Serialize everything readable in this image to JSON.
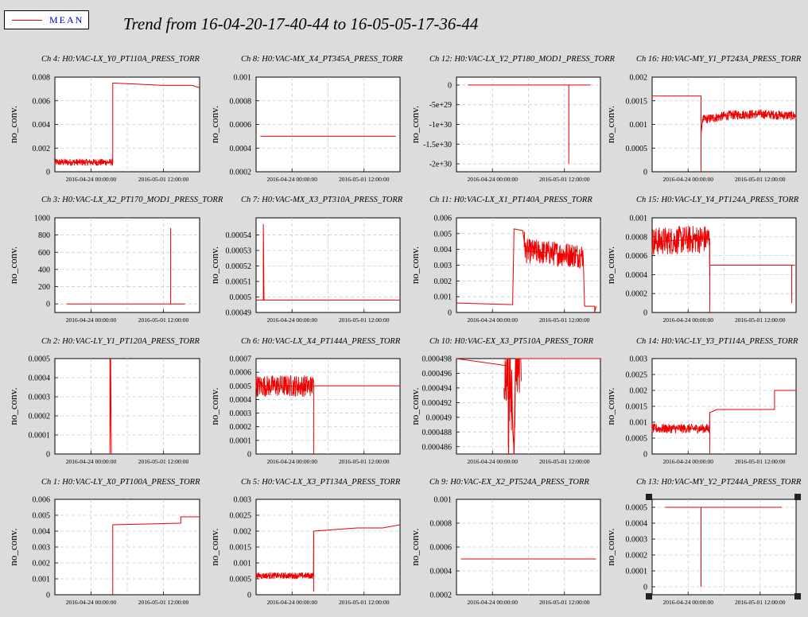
{
  "legend": {
    "label": "MEAN",
    "color": "#ee0000"
  },
  "title": "Trend from 16-04-20-17-40-44 to 16-05-05-17-36-44",
  "ylabel": "no_conv.",
  "xticks": [
    "2016-04-24 00:00:00",
    "2016-05-01 12:00:00"
  ],
  "colors": {
    "background": "#dcdcdc",
    "plot_bg": "#ffffff",
    "trace": "#ee0000",
    "grid": "#cccccc"
  },
  "chart_data": [
    {
      "type": "line",
      "title": "Ch 4: H0:VAC-LX_Y0_PT110A_PRESS_TORR",
      "ylim": [
        0,
        0.008
      ],
      "yticks": [
        "0",
        "0.002",
        "0.004",
        "0.006",
        "0.008"
      ],
      "series": [
        {
          "values": [
            [
              0,
              0.0008
            ],
            [
              0.4,
              0.0008
            ],
            [
              0.4,
              0.0075
            ],
            [
              0.75,
              0.0073
            ],
            [
              0.95,
              0.0073
            ],
            [
              1.0,
              0.0071
            ]
          ],
          "noise": [
            [
              0,
              0.4,
              0.0003
            ]
          ]
        }
      ]
    },
    {
      "type": "line",
      "title": "Ch 8: H0:VAC-MX_X4_PT345A_PRESS_TORR",
      "ylim": [
        0.0002,
        0.001
      ],
      "yticks": [
        "0.0002",
        "0.0004",
        "0.0006",
        "0.0008",
        "0.001"
      ],
      "series": [
        {
          "values": [
            [
              0.03,
              0.0005
            ],
            [
              0.97,
              0.0005
            ]
          ]
        }
      ]
    },
    {
      "type": "line",
      "title": "Ch 12: H0:VAC-LX_Y2_PT180_MOD1_PRESS_TORR",
      "ylim": [
        -2.2e+30,
        2e+29
      ],
      "yticks": [
        "0",
        "-5e+29",
        "-1e+30",
        "-1.5e+30",
        "-2e+30"
      ],
      "series": [
        {
          "values": [
            [
              0.08,
              0
            ],
            [
              0.78,
              0
            ],
            [
              0.78,
              -2e+30
            ],
            [
              0.78,
              0
            ],
            [
              0.93,
              0
            ]
          ]
        }
      ]
    },
    {
      "type": "line",
      "title": "Ch 16: H0:VAC-MY_Y1_PT243A_PRESS_TORR",
      "ylim": [
        0,
        0.002
      ],
      "yticks": [
        "0",
        "0.0005",
        "0.001",
        "0.0015",
        "0.002"
      ],
      "series": [
        {
          "values": [
            [
              0,
              0.0016
            ],
            [
              0.34,
              0.0016
            ],
            [
              0.34,
              0
            ],
            [
              0.34,
              0.0008
            ],
            [
              0.35,
              0.0011
            ],
            [
              0.55,
              0.0012
            ],
            [
              0.75,
              0.00122
            ],
            [
              1.0,
              0.00118
            ]
          ],
          "noise": [
            [
              0.35,
              1.0,
              0.0001
            ]
          ]
        }
      ]
    },
    {
      "type": "line",
      "title": "Ch 3: H0:VAC-LX_X2_PT170_MOD1_PRESS_TORR",
      "ylim": [
        -100,
        1000
      ],
      "yticks": [
        "0",
        "200",
        "400",
        "600",
        "800",
        "1000"
      ],
      "series": [
        {
          "values": [
            [
              0.08,
              0
            ],
            [
              0.8,
              0
            ],
            [
              0.8,
              880
            ],
            [
              0.8,
              0
            ],
            [
              0.9,
              0
            ]
          ]
        }
      ]
    },
    {
      "type": "line",
      "title": "Ch 7: H0:VAC-MX_X3_PT310A_PRESS_TORR",
      "ylim": [
        0.00049,
        0.000551
      ],
      "yticks": [
        "0.00049",
        "0.0005",
        "0.00051",
        "0.00052",
        "0.00053",
        "0.00054"
      ],
      "series": [
        {
          "values": [
            [
              0,
              0.000498
            ],
            [
              0.05,
              0.000498
            ],
            [
              0.05,
              0.000547
            ],
            [
              0.055,
              0.000498
            ],
            [
              1.0,
              0.000498
            ]
          ]
        }
      ]
    },
    {
      "type": "line",
      "title": "Ch 11: H0:VAC-LX_X1_PT140A_PRESS_TORR",
      "ylim": [
        0,
        0.006
      ],
      "yticks": [
        "0",
        "0.001",
        "0.002",
        "0.003",
        "0.004",
        "0.005",
        "0.006"
      ],
      "series": [
        {
          "values": [
            [
              0,
              0.0006
            ],
            [
              0.39,
              0.0005
            ],
            [
              0.4,
              0.0053
            ],
            [
              0.46,
              0.0052
            ],
            [
              0.48,
              0.0039
            ],
            [
              0.88,
              0.0036
            ],
            [
              0.89,
              0.0004
            ],
            [
              0.96,
              0.0004
            ],
            [
              0.96,
              0
            ],
            [
              0.97,
              0.0004
            ]
          ],
          "noise": [
            [
              0.47,
              0.88,
              0.0008
            ]
          ]
        }
      ]
    },
    {
      "type": "line",
      "title": "Ch 15: H0:VAC-LY_Y4_PT124A_PRESS_TORR",
      "ylim": [
        0,
        0.001
      ],
      "yticks": [
        "0",
        "0.0002",
        "0.0004",
        "0.0006",
        "0.0008",
        "0.001"
      ],
      "series": [
        {
          "values": [
            [
              0,
              0.00075
            ],
            [
              0.4,
              0.00078
            ],
            [
              0.4,
              0
            ],
            [
              0.4,
              0.0005
            ],
            [
              0.97,
              0.0005
            ],
            [
              0.97,
              0.0001
            ],
            [
              0.97,
              0.0005
            ],
            [
              0.99,
              0.0005
            ]
          ],
          "noise": [
            [
              0,
              0.4,
              0.00015
            ]
          ]
        }
      ]
    },
    {
      "type": "line",
      "title": "Ch 2: H0:VAC-LY_Y1_PT120A_PRESS_TORR",
      "ylim": [
        0,
        0.0005
      ],
      "yticks": [
        "0",
        "0.0001",
        "0.0002",
        "0.0003",
        "0.0004",
        "0.0005"
      ],
      "series": [
        {
          "values": [
            [
              0.38,
              0.0005
            ],
            [
              0.38,
              0
            ],
            [
              0.385,
              0.0005
            ],
            [
              0.39,
              0
            ]
          ]
        }
      ]
    },
    {
      "type": "line",
      "title": "Ch 6: H0:VAC-LX_X4_PT144A_PRESS_TORR",
      "ylim": [
        0,
        0.0007
      ],
      "yticks": [
        "0",
        "0.0001",
        "0.0002",
        "0.0003",
        "0.0004",
        "0.0005",
        "0.0006",
        "0.0007"
      ],
      "series": [
        {
          "values": [
            [
              0,
              0.0005
            ],
            [
              0.4,
              0.0005
            ],
            [
              0.4,
              0
            ],
            [
              0.4,
              0.0005
            ],
            [
              1.0,
              0.0005
            ]
          ],
          "noise": [
            [
              0,
              0.4,
              8e-05
            ]
          ]
        }
      ]
    },
    {
      "type": "line",
      "title": "Ch 10: H0:VAC-EX_X3_PT510A_PRESS_TORR",
      "ylim": [
        0.000485,
        0.000498
      ],
      "yticks": [
        "0.000486",
        "0.000488",
        "0.00049",
        "0.000492",
        "0.000494",
        "0.000496",
        "0.000498"
      ],
      "series": [
        {
          "values": [
            [
              0,
              0.000498
            ],
            [
              0.36,
              0.000497
            ],
            [
              0.36,
              0.000486
            ],
            [
              0.37,
              0.000498
            ],
            [
              0.4,
              0.000485
            ],
            [
              0.41,
              0.000498
            ],
            [
              1.0,
              0.000498
            ]
          ],
          "noise": [
            [
              0.33,
              0.45,
              5e-06
            ]
          ]
        }
      ]
    },
    {
      "type": "line",
      "title": "Ch 14: H0:VAC-LY_Y3_PT114A_PRESS_TORR",
      "ylim": [
        0,
        0.003
      ],
      "yticks": [
        "0",
        "0.0005",
        "0.001",
        "0.0015",
        "0.002",
        "0.0025",
        "0.003"
      ],
      "series": [
        {
          "values": [
            [
              0,
              0.0008
            ],
            [
              0.4,
              0.0008
            ],
            [
              0.4,
              0
            ],
            [
              0.4,
              0.0013
            ],
            [
              0.45,
              0.0014
            ],
            [
              0.85,
              0.0014
            ],
            [
              0.85,
              0.002
            ],
            [
              1.0,
              0.002
            ]
          ],
          "noise": [
            [
              0,
              0.4,
              0.00015
            ]
          ]
        }
      ]
    },
    {
      "type": "line",
      "title": "Ch 1: H0:VAC-LY_X0_PT100A_PRESS_TORR",
      "ylim": [
        0,
        0.006
      ],
      "yticks": [
        "0",
        "0.001",
        "0.002",
        "0.003",
        "0.004",
        "0.005",
        "0.006"
      ],
      "series": [
        {
          "values": [
            [
              0.4,
              0
            ],
            [
              0.4,
              0.0044
            ],
            [
              0.87,
              0.0045
            ],
            [
              0.87,
              0.0049
            ],
            [
              1.0,
              0.0049
            ]
          ]
        }
      ]
    },
    {
      "type": "line",
      "title": "Ch 5: H0:VAC-LX_X3_PT134A_PRESS_TORR",
      "ylim": [
        0,
        0.003
      ],
      "yticks": [
        "0",
        "0.0005",
        "0.001",
        "0.0015",
        "0.002",
        "0.0025",
        "0.003"
      ],
      "series": [
        {
          "values": [
            [
              0,
              0.0006
            ],
            [
              0.4,
              0.0006
            ],
            [
              0.4,
              0.0001
            ],
            [
              0.4,
              0.002
            ],
            [
              0.7,
              0.0021
            ],
            [
              0.88,
              0.0021
            ],
            [
              1.0,
              0.0022
            ]
          ],
          "noise": [
            [
              0,
              0.4,
              0.0001
            ]
          ]
        }
      ]
    },
    {
      "type": "line",
      "title": "Ch 9: H0:VAC-EX_X2_PT524A_PRESS_TORR",
      "ylim": [
        0.0002,
        0.001
      ],
      "yticks": [
        "0.0002",
        "0.0004",
        "0.0006",
        "0.0008",
        "0.001"
      ],
      "series": [
        {
          "values": [
            [
              0.03,
              0.0005
            ],
            [
              0.97,
              0.0005
            ]
          ]
        }
      ]
    },
    {
      "type": "line",
      "title": "Ch 13: H0:VAC-MY_Y2_PT244A_PRESS_TORR",
      "ylim": [
        -5e-05,
        0.00055
      ],
      "yticks": [
        "0",
        "0.0001",
        "0.0002",
        "0.0003",
        "0.0004",
        "0.0005"
      ],
      "series": [
        {
          "values": [
            [
              0.09,
              0.0005
            ],
            [
              0.34,
              0.0005
            ],
            [
              0.34,
              0
            ],
            [
              0.34,
              0.0005
            ],
            [
              0.9,
              0.0005
            ]
          ]
        }
      ]
    }
  ]
}
